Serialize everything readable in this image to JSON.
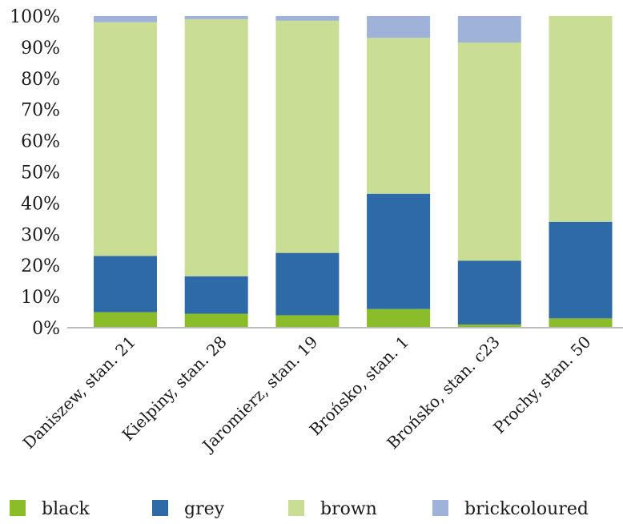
{
  "chart_data": {
    "type": "bar",
    "stacked": true,
    "percent": true,
    "categories": [
      "Daniszew, stan. 21",
      "Kielpiny, stan. 28",
      "Jaromierz, stan. 19",
      "Brońsko, stan. 1",
      "Brońsko, stan. c23",
      "Prochy, stan. 50"
    ],
    "series": [
      {
        "name": "black",
        "color": "#8bbd2a",
        "values": [
          5,
          4.5,
          4,
          6,
          1,
          3
        ]
      },
      {
        "name": "grey",
        "color": "#2e6aa8",
        "values": [
          18,
          12,
          20,
          37,
          20.5,
          31
        ]
      },
      {
        "name": "brown",
        "color": "#c9dd94",
        "values": [
          75,
          82.5,
          74.5,
          50,
          70,
          66
        ]
      },
      {
        "name": "brickcoloured",
        "color": "#9fb2d8",
        "values": [
          2,
          1,
          1.5,
          7,
          8.5,
          0
        ]
      }
    ],
    "title": "",
    "xlabel": "",
    "ylabel": "",
    "ylim": [
      0,
      100
    ],
    "yticks": [
      "0%",
      "10%",
      "20%",
      "30%",
      "40%",
      "50%",
      "60%",
      "70%",
      "80%",
      "90%",
      "100%"
    ],
    "grid": false,
    "legend_position": "bottom"
  }
}
